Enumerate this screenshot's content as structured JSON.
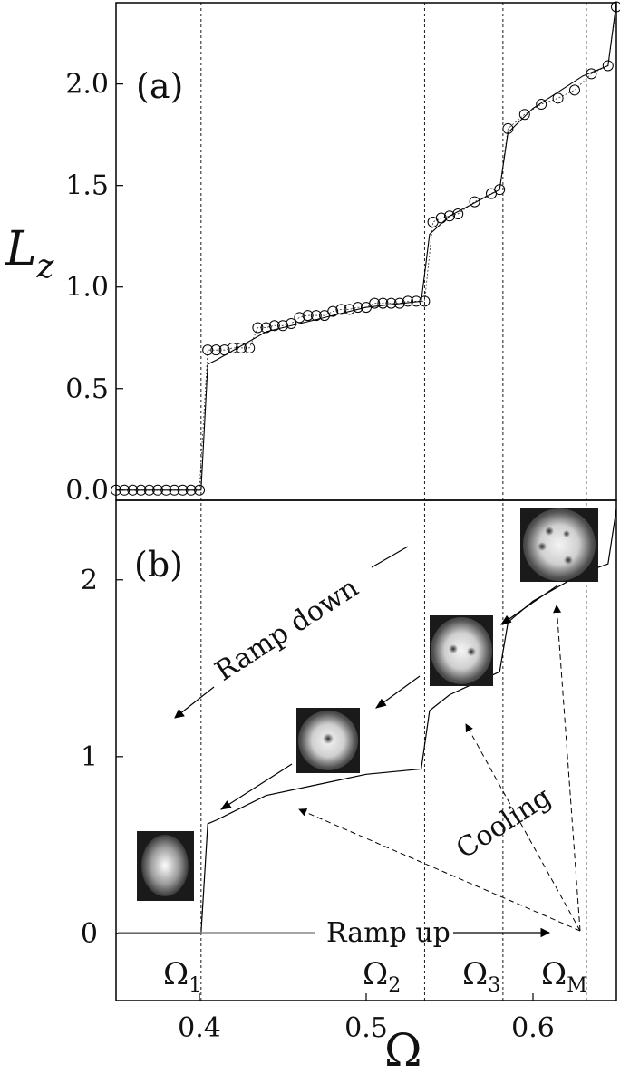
{
  "chart_data": [
    {
      "panel": "(a)",
      "type": "scatter",
      "xlim": [
        0.35,
        0.65
      ],
      "ylim": [
        -0.05,
        2.4
      ],
      "ylabel": "L",
      "ylabel_sub": "z",
      "yticks": [
        "0.0",
        "0.5",
        "1.0",
        "1.5",
        "2.0"
      ],
      "grid": false,
      "series": [
        {
          "x": [
            0.35,
            0.355,
            0.36,
            0.365,
            0.37,
            0.375,
            0.38,
            0.385,
            0.39,
            0.395,
            0.4,
            0.405,
            0.41,
            0.415,
            0.42,
            0.425,
            0.43,
            0.435,
            0.44,
            0.445,
            0.45,
            0.455,
            0.46,
            0.465,
            0.47,
            0.475,
            0.48,
            0.485,
            0.49,
            0.495,
            0.5,
            0.505,
            0.51,
            0.515,
            0.52,
            0.525,
            0.53,
            0.535,
            0.54,
            0.545,
            0.55,
            0.555,
            0.565,
            0.575,
            0.58,
            0.585,
            0.595,
            0.605,
            0.615,
            0.625,
            0.635,
            0.645,
            0.65
          ],
          "y": [
            0.0,
            0.0,
            0.0,
            0.0,
            0.0,
            0.0,
            0.0,
            0.0,
            0.0,
            0.0,
            0.0,
            0.69,
            0.69,
            0.69,
            0.7,
            0.7,
            0.7,
            0.8,
            0.8,
            0.81,
            0.81,
            0.82,
            0.85,
            0.86,
            0.86,
            0.86,
            0.88,
            0.89,
            0.89,
            0.9,
            0.9,
            0.92,
            0.92,
            0.92,
            0.92,
            0.93,
            0.93,
            0.93,
            1.32,
            1.34,
            1.35,
            1.36,
            1.42,
            1.46,
            1.48,
            1.78,
            1.85,
            1.9,
            1.93,
            1.97,
            2.05,
            2.09,
            2.38
          ]
        },
        {
          "x": [
            0.35,
            0.401,
            0.405,
            0.41,
            0.44,
            0.47,
            0.5,
            0.533,
            0.538,
            0.55,
            0.58,
            0.585,
            0.6,
            0.63,
            0.645,
            0.65
          ],
          "y": [
            0.0,
            0.0,
            0.62,
            0.64,
            0.78,
            0.84,
            0.9,
            0.93,
            1.26,
            1.35,
            1.48,
            1.76,
            1.88,
            2.04,
            2.09,
            2.4
          ]
        }
      ],
      "vlines": [
        0.401,
        0.535,
        0.582,
        0.632
      ]
    },
    {
      "panel": "(b)",
      "type": "line",
      "xlim": [
        0.35,
        0.65
      ],
      "ylim": [
        -0.38,
        2.45
      ],
      "xlabel": "Ω",
      "xticks": [
        "0.4",
        "0.5",
        "0.6"
      ],
      "yticks": [
        "0",
        "1",
        "2"
      ],
      "grid": false,
      "series": [
        {
          "x": [
            0.35,
            0.401,
            0.405,
            0.41,
            0.44,
            0.47,
            0.5,
            0.533,
            0.538,
            0.55,
            0.58,
            0.585,
            0.6,
            0.63,
            0.645,
            0.65
          ],
          "y": [
            0.0,
            0.0,
            0.62,
            0.64,
            0.78,
            0.84,
            0.9,
            0.93,
            1.26,
            1.35,
            1.48,
            1.76,
            1.88,
            2.04,
            2.09,
            2.4
          ]
        }
      ],
      "vlines": [
        0.401,
        0.535,
        0.582,
        0.632
      ],
      "annotations": {
        "ramp_down": "Ramp down",
        "ramp_up": "Ramp up",
        "cooling": "Cooling"
      },
      "critical_frequencies": [
        {
          "symbol": "Ω",
          "sub": "1"
        },
        {
          "symbol": "Ω",
          "sub": "2"
        },
        {
          "symbol": "Ω",
          "sub": "3"
        },
        {
          "symbol": "Ω",
          "sub": "M"
        }
      ]
    }
  ]
}
